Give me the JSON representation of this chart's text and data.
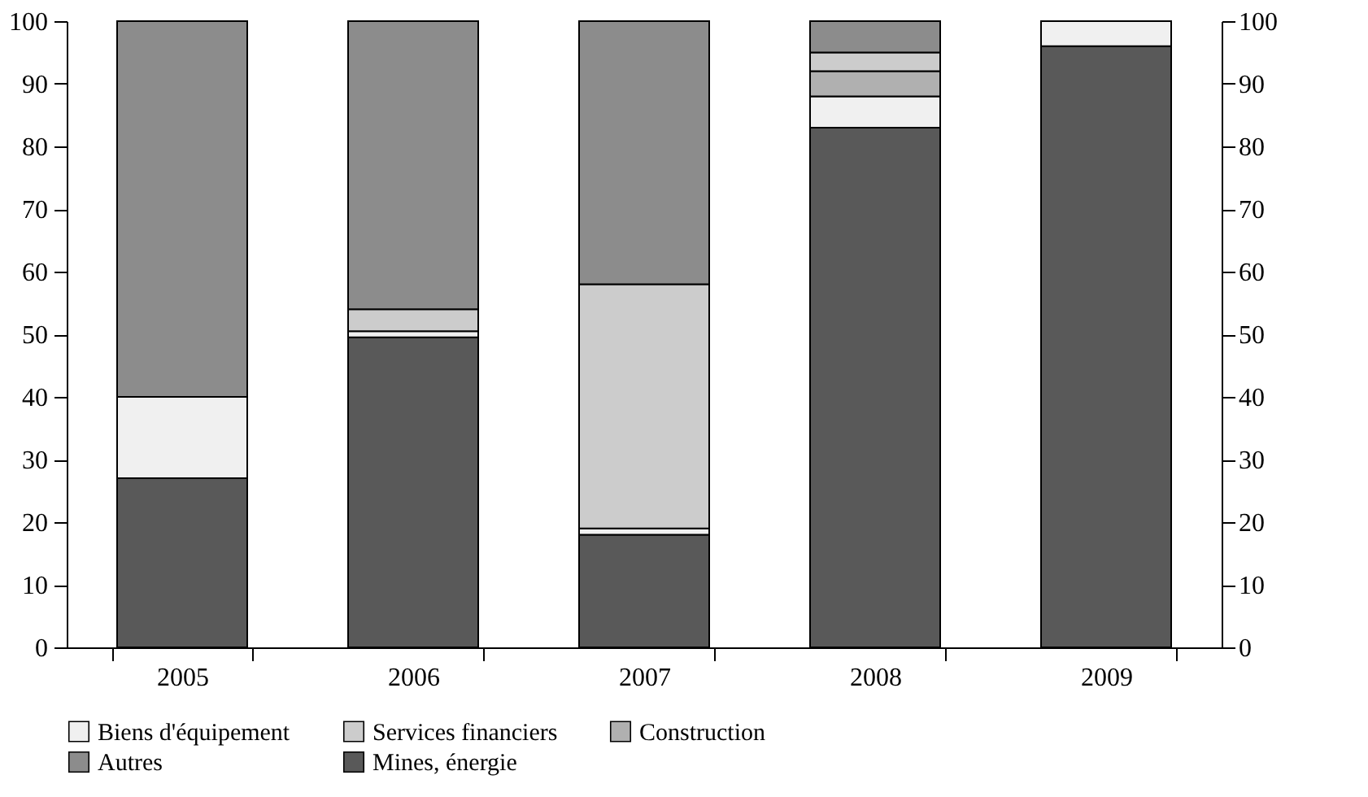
{
  "chart_data": {
    "type": "bar",
    "stacked": true,
    "categories": [
      "2005",
      "2006",
      "2007",
      "2008",
      "2009"
    ],
    "series": [
      {
        "name": "Mines, énergie",
        "color": "#595959",
        "values": [
          27,
          49.5,
          18,
          83,
          96
        ]
      },
      {
        "name": "Biens d'équipement",
        "color": "#f0f0f0",
        "values": [
          13,
          1,
          1,
          5,
          4
        ]
      },
      {
        "name": "Construction",
        "color": "#b0b0b0",
        "values": [
          0,
          0,
          0,
          4,
          0
        ]
      },
      {
        "name": "Services financiers",
        "color": "#cccccc",
        "values": [
          0,
          3.5,
          39,
          3,
          0
        ]
      },
      {
        "name": "Autres",
        "color": "#8c8c8c",
        "values": [
          60,
          46,
          42,
          5,
          0
        ]
      }
    ],
    "ylim": [
      0,
      100
    ],
    "yticks": [
      0,
      10,
      20,
      30,
      40,
      50,
      60,
      70,
      80,
      90,
      100
    ],
    "y2lim": [
      0,
      100
    ],
    "y2ticks": [
      0,
      10,
      20,
      30,
      40,
      50,
      60,
      70,
      80,
      90,
      100
    ],
    "grid": false,
    "legend": "bottom"
  }
}
